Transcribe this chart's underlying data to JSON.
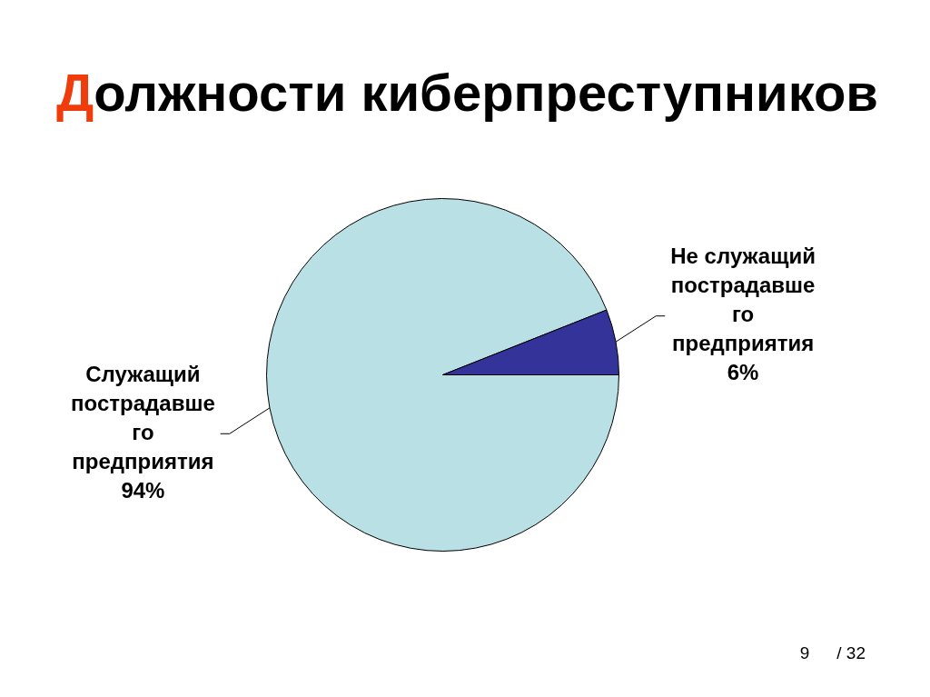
{
  "chart_data": {
    "type": "pie",
    "title": "Должности киберпреступников",
    "categories": [
      "Служащий пострадавшего предприятия",
      "Не служащий пострадавшего предприятия"
    ],
    "values": [
      94,
      6
    ],
    "colors": [
      "#b9e0e4",
      "#333399"
    ],
    "value_labels": [
      "94%",
      "6%"
    ],
    "annotations": [
      "9",
      "/ 32"
    ]
  }
}
